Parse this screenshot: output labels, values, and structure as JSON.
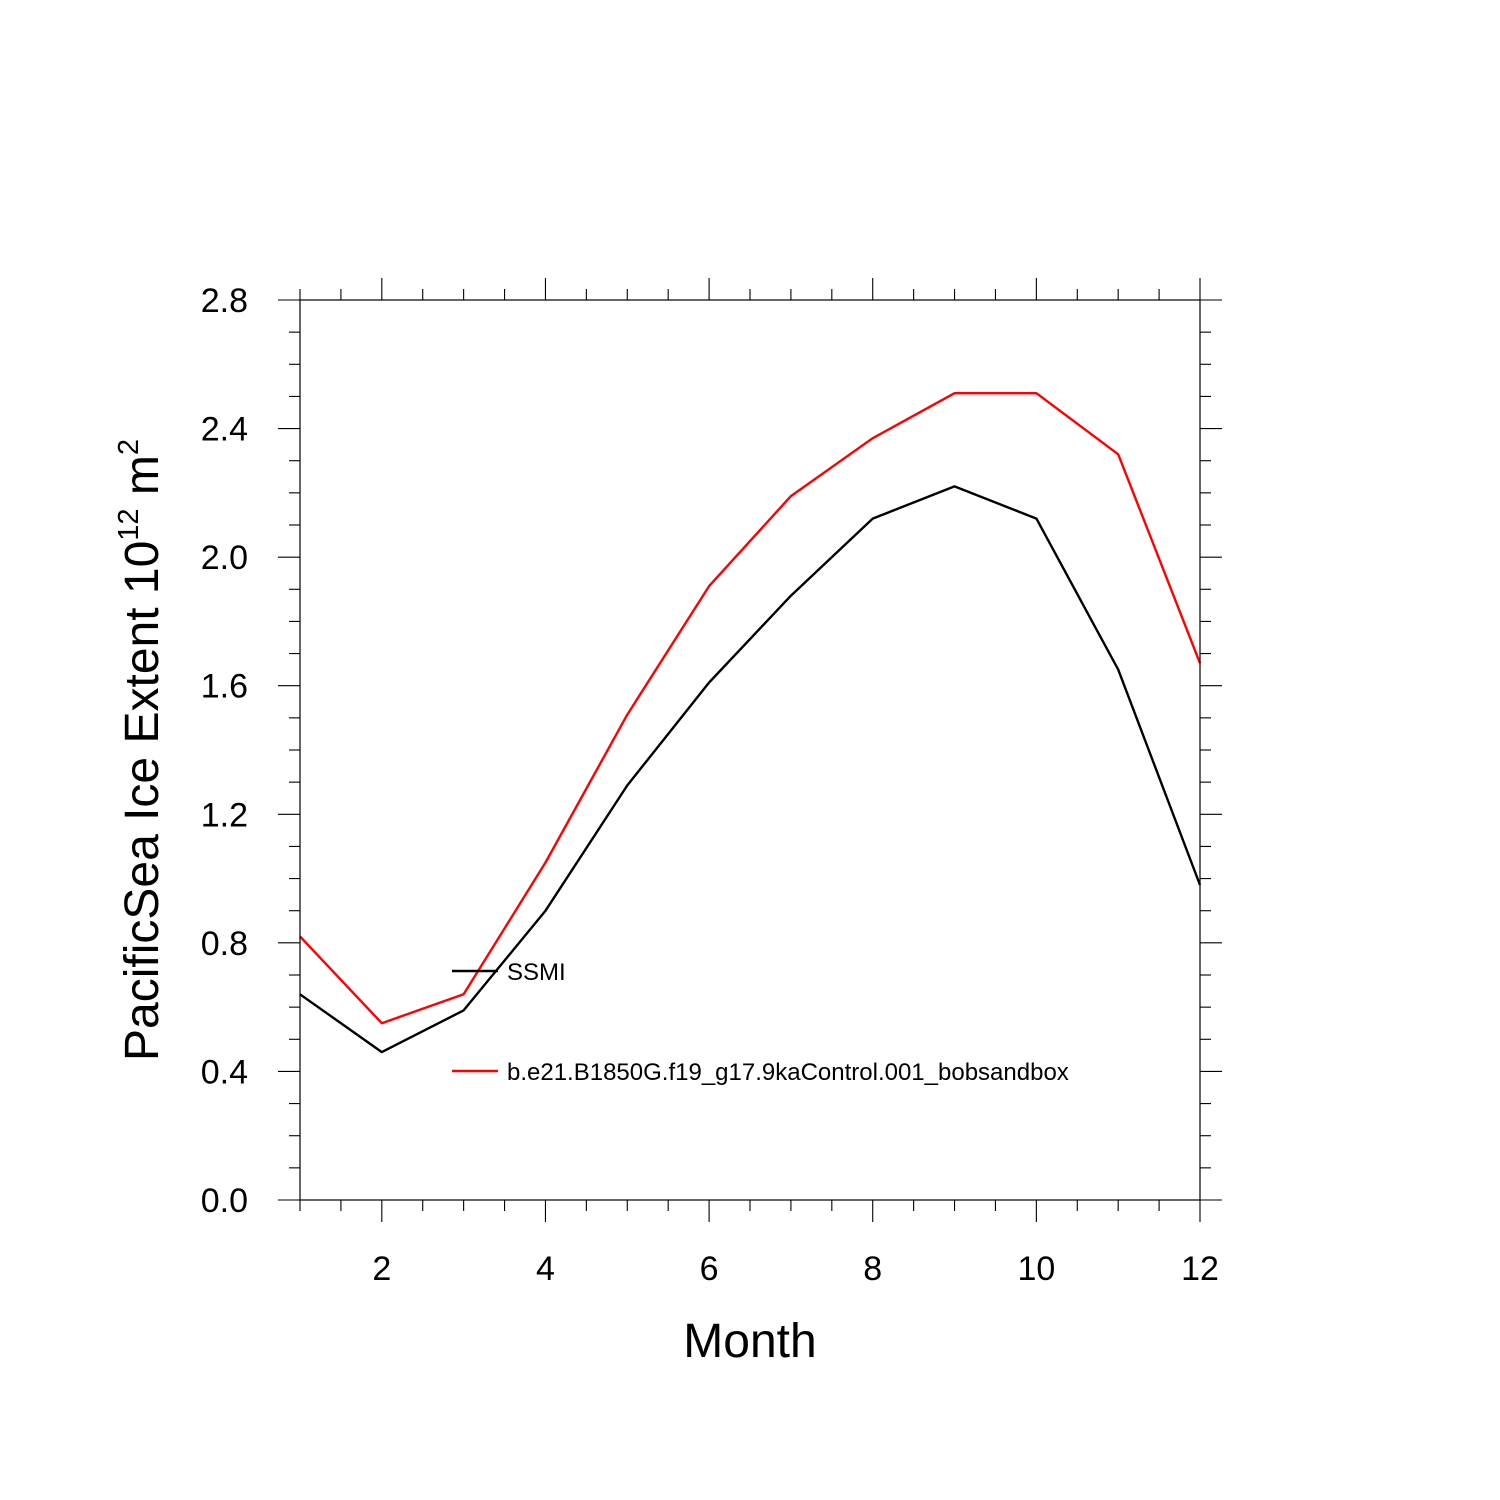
{
  "chart_data": {
    "type": "line",
    "title": "",
    "xlabel": "Month",
    "ylabel": {
      "text_before": "PacificSea Ice Extent 10",
      "superscript_1": "12",
      "text_middle": " m",
      "superscript_2": "2"
    },
    "xlim": [
      1,
      12
    ],
    "ylim": [
      0.0,
      2.8
    ],
    "x_ticks": [
      2,
      4,
      6,
      8,
      10,
      12
    ],
    "x_tick_labels": [
      "2",
      "4",
      "6",
      "8",
      "10",
      "12"
    ],
    "y_ticks": [
      0.0,
      0.4,
      0.8,
      1.2,
      1.6,
      2.0,
      2.4,
      2.8
    ],
    "y_tick_labels": [
      "0.0",
      "0.4",
      "0.8",
      "1.2",
      "1.6",
      "2.0",
      "2.4",
      "2.8"
    ],
    "grid": false,
    "legend_position": "inside-lower-left",
    "x": [
      1,
      2,
      3,
      4,
      5,
      6,
      7,
      8,
      9,
      10,
      11,
      12
    ],
    "series": [
      {
        "name": "SSMI",
        "color": "#000000",
        "values": [
          0.64,
          0.46,
          0.59,
          0.9,
          1.29,
          1.61,
          1.88,
          2.12,
          2.22,
          2.12,
          1.65,
          0.98
        ]
      },
      {
        "name": "b.e21.B1850G.f19_g17.9kaControl.001_bobsandbox",
        "color": "#ff0000",
        "values": [
          0.82,
          0.55,
          0.64,
          1.05,
          1.51,
          1.91,
          2.19,
          2.37,
          2.51,
          2.51,
          2.32,
          1.67
        ]
      }
    ]
  }
}
